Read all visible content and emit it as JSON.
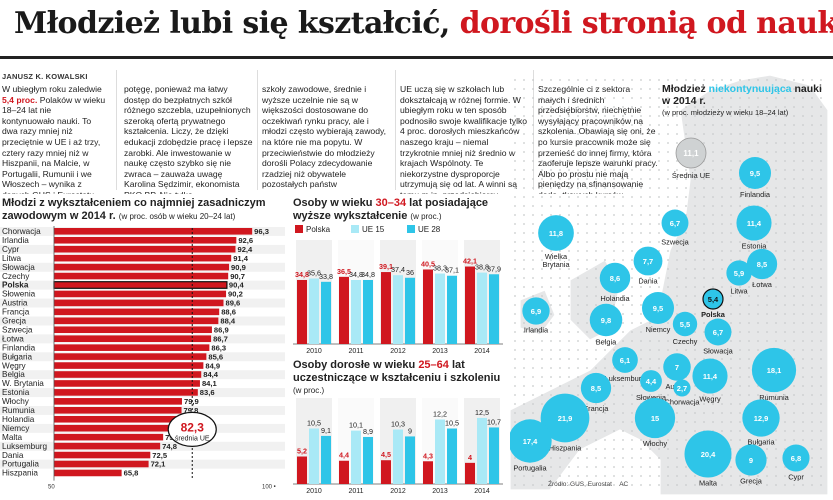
{
  "headline": {
    "part1": "Młodzież lubi się kształcić, ",
    "part2": "dorośli stronią od nauki"
  },
  "author": "JANUSZ K. KOWALSKI",
  "article": {
    "col1": [
      {
        "t": "W ubiegłym roku zaledwie "
      },
      {
        "t": "5,4 proc.",
        "hl": true
      },
      {
        "t": " Polaków w wieku 18–24 lat nie kontynuowało nauki. To dwa razy mniej niż przeciętnie w UE i aż trzy, cztery razy mniej niż w Hiszpanii, na Malcie, w Portugalii, Rumunii i we Włoszech – wynika z danych GUS i Eurostatu. – Polska młodzież uczy się na"
      }
    ],
    "col2": "potęgę, ponieważ ma łatwy dostęp do bezpłatnych szkół różnego szczebla, uzupełnionych szeroką ofertą prywatnego kształcenia. Liczy, że dzięki edukacji zdobędzie pracę i lepsze zarobki. Ale inwestowanie w naukę często szybko się nie zwraca – zauważa uwagę Karolina Sędzimir, ekonomista PKO BP. Nie tylko",
    "col3": "szkoły zawodowe, średnie i wyższe uczelnie nie są w większości dostosowane do oczekiwań rynku pracy, ale i młodzi często wybierają zawody, na które nie ma popytu. W przeciwieństwie do młodzieży dorośli Polacy zdecydowanie rzadziej niż obywatele pozostałych państw",
    "col4": "UE uczą się w szkołach lub dokształcają w różnej formie. W ubiegłym roku w ten sposób podnosiło swoje kwalifikacje tylko 4 proc. dorosłych mieszkańców naszego kraju – niemal trzykrotnie mniej niż średnio w krajach Wspólnoty. Te niekorzystne dysproporcje utrzymują się od lat. A winni są temu m.in. przedsiębiorcy.",
    "col5": "Szczególnie ci z sektora małych i średnich przedsiębiorstw, niechętnie wysyłający pracowników na szkolenia. Obawiają się oni, że po kursie pracownik może się przenieść do innej firmy, która zaoferuje lepsze warunki pracy. Albo po prostu nie mają pieniędzy na sfinansowanie doda- tkowych kursów."
  },
  "colors": {
    "red": "#d0171f",
    "cyan": "#2ec5e8",
    "lightcyan": "#a9e9f6",
    "grey": "#cfd2d3",
    "map_bg": "#e6e7e8"
  },
  "chart_data": [
    {
      "type": "bar",
      "orientation": "horizontal",
      "title": "Młodzi z wykształceniem co najmniej zasadniczym zawodowym w 2014 r.",
      "subtitle": "(w proc. osób w wieku 20–24 lat)",
      "categories": [
        "Chorwacja",
        "Irlandia",
        "Cypr",
        "Litwa",
        "Słowacja",
        "Czechy",
        "Polska",
        "Słowenia",
        "Austria",
        "Francja",
        "Grecja",
        "Szwecja",
        "Łotwa",
        "Finlandia",
        "Bułgaria",
        "Węgry",
        "Belgia",
        "W. Brytania",
        "Estonia",
        "Włochy",
        "Rumunia",
        "Holandia",
        "Niemcy",
        "Malta",
        "Luksemburg",
        "Dania",
        "Portugalia",
        "Hiszpania"
      ],
      "values": [
        96.3,
        92.6,
        92.4,
        91.4,
        90.9,
        90.7,
        90.4,
        90.2,
        89.6,
        88.6,
        88.4,
        86.9,
        86.7,
        86.3,
        85.6,
        84.9,
        84.4,
        84.1,
        83.6,
        79.9,
        79.8,
        79.2,
        77.1,
        75.5,
        74.8,
        72.5,
        72.1,
        65.8
      ],
      "value_labels": [
        "96,3",
        "92,6",
        "92,4",
        "91,4",
        "90,9",
        "90,7",
        "90,4",
        "90,2",
        "89,6",
        "88,6",
        "88,4",
        "86,9",
        "86,7",
        "86,3",
        "85,6",
        "84,9",
        "84,4",
        "84,1",
        "83,6",
        "79,9",
        "79,8",
        "79,2",
        "77,1",
        "75,5",
        "74,8",
        "72,5",
        "72,1",
        "65,8"
      ],
      "highlight": "Polska",
      "reference": {
        "value": 82.3,
        "label": "82,3",
        "sublabel": "średnia UE"
      },
      "xlim": [
        50,
        100
      ],
      "tick_labels": [
        "50",
        "100 •"
      ]
    },
    {
      "type": "bar",
      "title_parts": [
        "Osoby w wieku ",
        "30–34",
        " lat posiadające wyższe wykształcenie"
      ],
      "subtitle": "(w proc.)",
      "legend": [
        "Polska",
        "UE 15",
        "UE 28"
      ],
      "categories": [
        "2010",
        "2011",
        "2012",
        "2013",
        "2014"
      ],
      "series": [
        {
          "name": "Polska",
          "values": [
            34.8,
            36.5,
            39.1,
            40.5,
            42.1
          ],
          "labels": [
            "34,8",
            "36,5",
            "39,1",
            "40,5",
            "42,1"
          ]
        },
        {
          "name": "UE 15",
          "values": [
            35.6,
            34.8,
            37.4,
            38.3,
            38.8
          ],
          "labels": [
            "35,6",
            "34,8",
            "37,4",
            "38,3",
            "38,8"
          ]
        },
        {
          "name": "UE 28",
          "values": [
            33.8,
            34.8,
            36.0,
            37.1,
            37.9
          ],
          "labels": [
            "33,8",
            "34,8",
            "36",
            "37,1",
            "37,9"
          ]
        }
      ],
      "ylim": [
        0,
        50
      ]
    },
    {
      "type": "bar",
      "title_parts": [
        "Osoby dorosłe w wieku ",
        "25–64",
        " lat uczestniczące w kształceniu i szkoleniu"
      ],
      "subtitle": "(w proc.)",
      "categories": [
        "2010",
        "2011",
        "2012",
        "2013",
        "2014"
      ],
      "series": [
        {
          "name": "Polska",
          "values": [
            5.2,
            4.4,
            4.5,
            4.3,
            4.0
          ],
          "labels": [
            "5,2",
            "4,4",
            "4,5",
            "4,3",
            "4"
          ]
        },
        {
          "name": "UE 15",
          "values": [
            10.5,
            10.1,
            10.3,
            12.2,
            12.5
          ],
          "labels": [
            "10,5",
            "10,1",
            "10,3",
            "12,2",
            "12,5"
          ]
        },
        {
          "name": "UE 28",
          "values": [
            9.1,
            8.9,
            9.0,
            10.5,
            10.7
          ],
          "labels": [
            "9,1",
            "8,9",
            "9",
            "10,5",
            "10,7"
          ]
        }
      ],
      "ylim": [
        0,
        14
      ]
    },
    {
      "type": "map",
      "title_parts": [
        "Młodzież ",
        "niekontynuująca",
        " nauki w 2014 r."
      ],
      "subtitle": "(w proc. młodzieży w wieku 18–24 lat)",
      "eu_average": {
        "value": 11.1,
        "label": "11,1",
        "sublabel": "Średnia UE"
      },
      "countries": [
        {
          "name": "Finlandia",
          "label": "9,5",
          "value": 9.5
        },
        {
          "name": "Szwecja",
          "label": "6,7",
          "value": 6.7
        },
        {
          "name": "Estonia",
          "label": "11,4",
          "value": 11.4
        },
        {
          "name": "Łotwa",
          "label": "8,5",
          "value": 8.5
        },
        {
          "name": "Litwa",
          "label": "5,9",
          "value": 5.9
        },
        {
          "name": "Wielka Brytania",
          "label": "11,8",
          "value": 11.8
        },
        {
          "name": "Dania",
          "label": "7,7",
          "value": 7.7
        },
        {
          "name": "Holandia",
          "label": "8,6",
          "value": 8.6
        },
        {
          "name": "Irlandia",
          "label": "6,9",
          "value": 6.9
        },
        {
          "name": "Polska",
          "label": "5,4",
          "value": 5.4
        },
        {
          "name": "Niemcy",
          "label": "9,5",
          "value": 9.5
        },
        {
          "name": "Belgia",
          "label": "9,8",
          "value": 9.8
        },
        {
          "name": "Czechy",
          "label": "5,5",
          "value": 5.5
        },
        {
          "name": "Słowacja",
          "label": "6,7",
          "value": 6.7
        },
        {
          "name": "Luksemburg",
          "label": "6,1",
          "value": 6.1
        },
        {
          "name": "Francja",
          "label": "8,5",
          "value": 8.5
        },
        {
          "name": "Austria",
          "label": "7",
          "value": 7.0
        },
        {
          "name": "Węgry",
          "label": "11,4",
          "value": 11.4
        },
        {
          "name": "Rumunia",
          "label": "18,1",
          "value": 18.1
        },
        {
          "name": "Słowenia",
          "label": "4,4",
          "value": 4.4
        },
        {
          "name": "Chorwacja",
          "label": "2,7",
          "value": 2.7
        },
        {
          "name": "Hiszpania",
          "label": "21,9",
          "value": 21.9
        },
        {
          "name": "Włochy",
          "label": "15",
          "value": 15.0
        },
        {
          "name": "Bułgaria",
          "label": "12,9",
          "value": 12.9
        },
        {
          "name": "Portugalia",
          "label": "17,4",
          "value": 17.4
        },
        {
          "name": "Malta",
          "label": "20,4",
          "value": 20.4
        },
        {
          "name": "Grecja",
          "label": "9",
          "value": 9.0
        },
        {
          "name": "Cypr",
          "label": "6,8",
          "value": 6.8
        }
      ]
    }
  ],
  "source": "Źródło: GUS, Eurostat",
  "credit": "AC"
}
